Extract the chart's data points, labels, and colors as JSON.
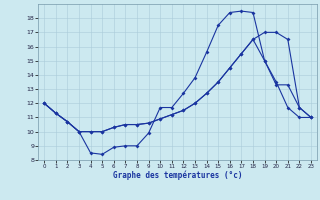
{
  "xlabel": "Graphe des températures (°c)",
  "xlim": [
    -0.5,
    23.5
  ],
  "ylim": [
    8,
    19
  ],
  "yticks": [
    8,
    9,
    10,
    11,
    12,
    13,
    14,
    15,
    16,
    17,
    18
  ],
  "xticks": [
    0,
    1,
    2,
    3,
    4,
    5,
    6,
    7,
    8,
    9,
    10,
    11,
    12,
    13,
    14,
    15,
    16,
    17,
    18,
    19,
    20,
    21,
    22,
    23
  ],
  "background_color": "#cce9f0",
  "grid_color": "#aaccd9",
  "line_color": "#1a35a0",
  "line1_x": [
    0,
    1,
    2,
    3,
    4,
    5,
    6,
    7,
    8,
    9,
    10,
    11,
    12,
    13,
    14,
    15,
    16,
    17,
    18,
    19,
    20,
    21,
    22,
    23
  ],
  "line1_y": [
    12,
    11.3,
    10.7,
    10.0,
    8.5,
    8.4,
    8.9,
    9.0,
    9.0,
    9.9,
    11.7,
    11.7,
    12.7,
    13.8,
    15.6,
    17.5,
    18.4,
    18.5,
    18.4,
    15.0,
    13.5,
    11.7,
    11.0,
    11.0
  ],
  "line2_x": [
    0,
    1,
    2,
    3,
    4,
    5,
    6,
    7,
    8,
    9,
    10,
    11,
    12,
    13,
    14,
    15,
    16,
    17,
    18,
    19,
    20,
    21,
    22,
    23
  ],
  "line2_y": [
    12,
    11.3,
    10.7,
    10.0,
    10.0,
    10.0,
    10.3,
    10.5,
    10.5,
    10.6,
    10.9,
    11.2,
    11.5,
    12.0,
    12.7,
    13.5,
    14.5,
    15.5,
    16.5,
    17.0,
    17.0,
    16.5,
    11.7,
    11.0
  ],
  "line3_x": [
    0,
    1,
    2,
    3,
    4,
    5,
    6,
    7,
    8,
    9,
    10,
    11,
    12,
    13,
    14,
    15,
    16,
    17,
    18,
    19,
    20,
    21,
    22,
    23
  ],
  "line3_y": [
    12,
    11.3,
    10.7,
    10.0,
    10.0,
    10.0,
    10.3,
    10.5,
    10.5,
    10.6,
    10.9,
    11.2,
    11.5,
    12.0,
    12.7,
    13.5,
    14.5,
    15.5,
    16.5,
    15.0,
    13.3,
    13.3,
    11.7,
    11.0
  ]
}
